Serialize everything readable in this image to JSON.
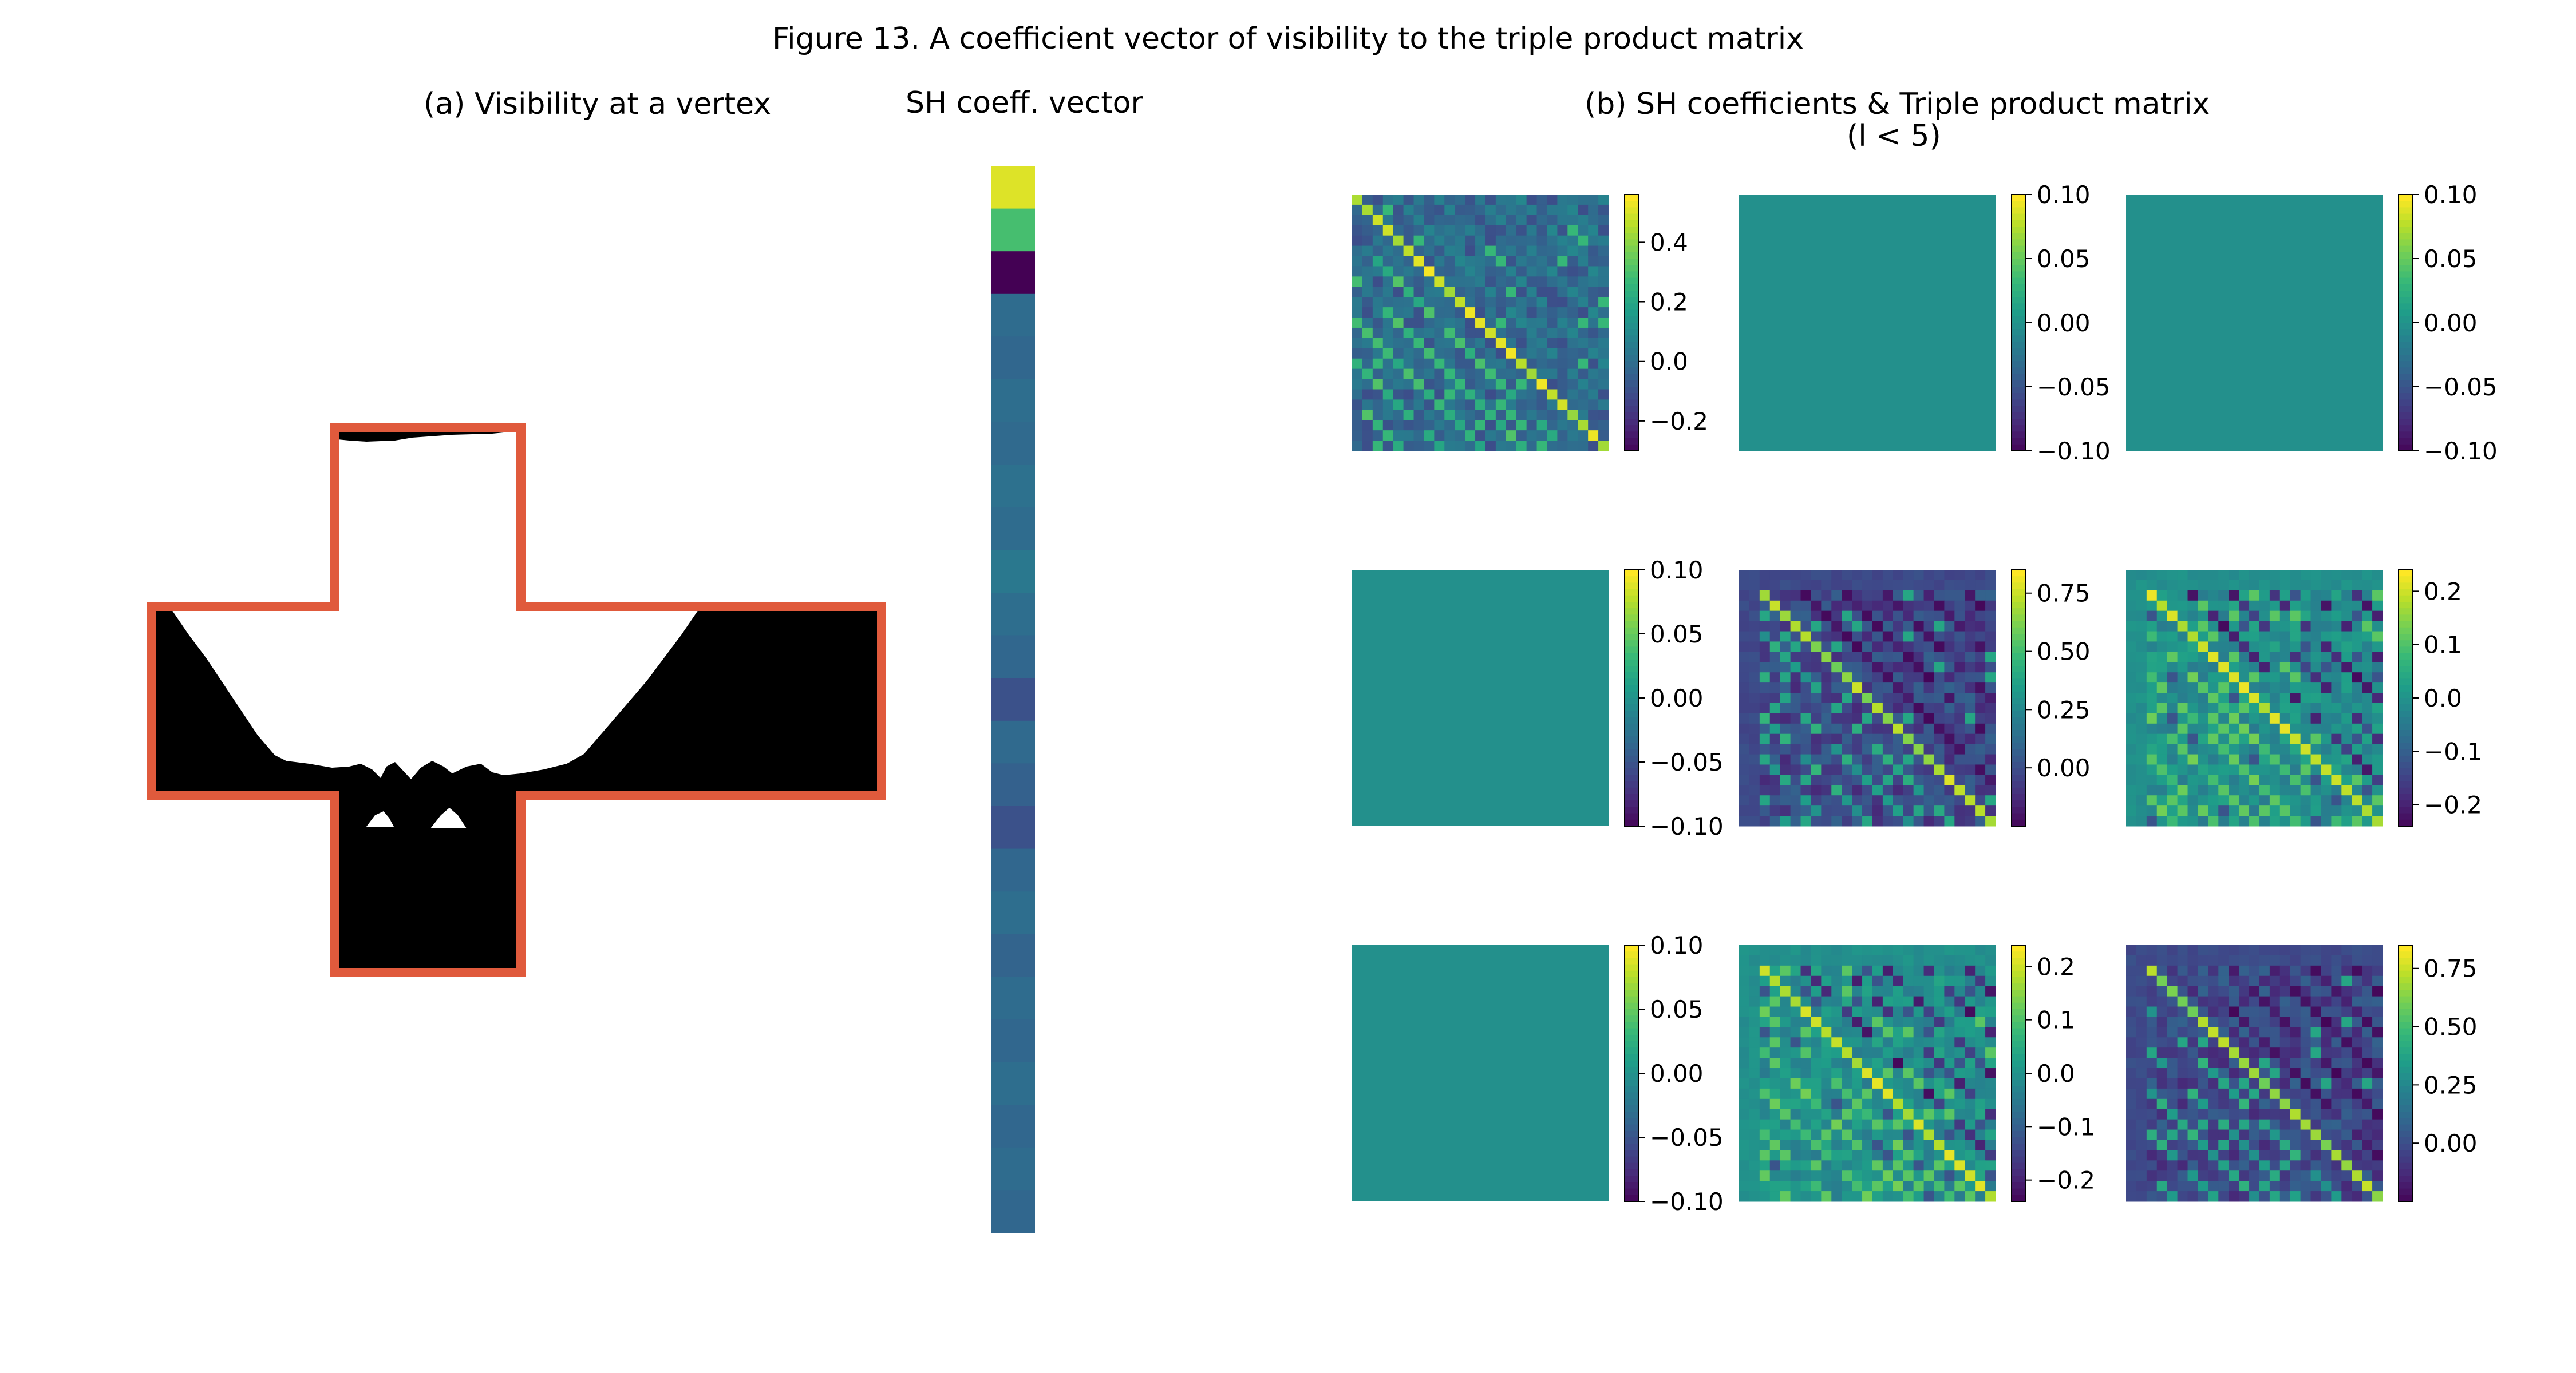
{
  "figure_title": "Figure 13. A coefficient vector of visibility to the triple product matrix",
  "panel_a_title": "(a) Visibility at a vertex",
  "sh_vector_title": "SH coeff. vector",
  "panel_b_title_line1": "(b) SH coefficients & Triple product matrix",
  "panel_b_title_line2": "(l < 5)",
  "colors": {
    "cross_outline": "#e05a3c",
    "occluder": "#000000",
    "viridis": [
      "#440154",
      "#3b528b",
      "#21918c",
      "#5ec962",
      "#fde725"
    ]
  },
  "chart_data": [
    {
      "type": "heatmap",
      "name": "SH coeff. vector",
      "shape": [
        25,
        1
      ],
      "values": [
        0.95,
        0.7,
        0.0,
        0.35,
        0.33,
        0.36,
        0.34,
        0.37,
        0.35,
        0.4,
        0.36,
        0.33,
        0.25,
        0.34,
        0.31,
        0.25,
        0.33,
        0.36,
        0.32,
        0.35,
        0.33,
        0.36,
        0.33,
        0.35,
        0.33
      ]
    },
    {
      "type": "heatmap",
      "title": "",
      "grid": [
        3,
        3
      ],
      "matrices": [
        {
          "row": 0,
          "col": 0,
          "kind": "patterned",
          "size": 25,
          "vmin": -0.3,
          "vmax": 0.56,
          "colorbar_ticks": [
            "0.4",
            "0.2",
            "0.0",
            "−0.2"
          ],
          "tick_values": [
            0.4,
            0.2,
            0.0,
            -0.2
          ],
          "diagonal_value": 0.55,
          "offdiag_value": 0.1,
          "background": -0.02,
          "seed": 11
        },
        {
          "row": 0,
          "col": 1,
          "kind": "constant",
          "vmin": -0.1,
          "vmax": 0.1,
          "value": 0.0,
          "colorbar_ticks": [
            "0.10",
            "0.05",
            "0.00",
            "−0.05",
            "−0.10"
          ],
          "tick_values": [
            0.1,
            0.05,
            0.0,
            -0.05,
            -0.1
          ]
        },
        {
          "row": 0,
          "col": 2,
          "kind": "constant",
          "vmin": -0.1,
          "vmax": 0.1,
          "value": 0.0,
          "colorbar_ticks": [
            "0.10",
            "0.05",
            "0.00",
            "−0.05",
            "−0.10"
          ],
          "tick_values": [
            0.1,
            0.05,
            0.0,
            -0.05,
            -0.1
          ]
        },
        {
          "row": 1,
          "col": 0,
          "kind": "constant",
          "vmin": -0.1,
          "vmax": 0.1,
          "value": 0.0,
          "colorbar_ticks": [
            "0.10",
            "0.05",
            "0.00",
            "−0.05",
            "−0.10"
          ],
          "tick_values": [
            0.1,
            0.05,
            0.0,
            -0.05,
            -0.1
          ]
        },
        {
          "row": 1,
          "col": 1,
          "kind": "patterned",
          "size": 25,
          "vmin": -0.25,
          "vmax": 0.85,
          "colorbar_ticks": [
            "0.75",
            "0.50",
            "0.25",
            "0.00"
          ],
          "tick_values": [
            0.75,
            0.5,
            0.25,
            0.0
          ],
          "diagonal_value": 0.8,
          "offdiag_value": -0.24,
          "background": 0.0,
          "seed": 23
        },
        {
          "row": 1,
          "col": 2,
          "kind": "patterned",
          "size": 25,
          "vmin": -0.24,
          "vmax": 0.24,
          "colorbar_ticks": [
            "0.2",
            "0.1",
            "0.0",
            "−0.1",
            "−0.2"
          ],
          "tick_values": [
            0.2,
            0.1,
            0.0,
            -0.1,
            -0.2
          ],
          "diagonal_value": 0.23,
          "offdiag_value": -0.23,
          "background": 0.0,
          "seed": 37
        },
        {
          "row": 2,
          "col": 0,
          "kind": "constant",
          "vmin": -0.1,
          "vmax": 0.1,
          "value": 0.0,
          "colorbar_ticks": [
            "0.10",
            "0.05",
            "0.00",
            "−0.05",
            "−0.10"
          ],
          "tick_values": [
            0.1,
            0.05,
            0.0,
            -0.05,
            -0.1
          ]
        },
        {
          "row": 2,
          "col": 1,
          "kind": "patterned",
          "size": 25,
          "vmin": -0.24,
          "vmax": 0.24,
          "colorbar_ticks": [
            "0.2",
            "0.1",
            "0.0",
            "−0.1",
            "−0.2"
          ],
          "tick_values": [
            0.2,
            0.1,
            0.0,
            -0.1,
            -0.2
          ],
          "diagonal_value": 0.23,
          "offdiag_value": -0.23,
          "background": 0.0,
          "seed": 41
        },
        {
          "row": 2,
          "col": 2,
          "kind": "patterned",
          "size": 25,
          "vmin": -0.25,
          "vmax": 0.85,
          "colorbar_ticks": [
            "0.75",
            "0.50",
            "0.25",
            "0.00"
          ],
          "tick_values": [
            0.75,
            0.5,
            0.25,
            0.0
          ],
          "diagonal_value": 0.8,
          "offdiag_value": -0.24,
          "background": 0.0,
          "seed": 53
        }
      ]
    }
  ]
}
